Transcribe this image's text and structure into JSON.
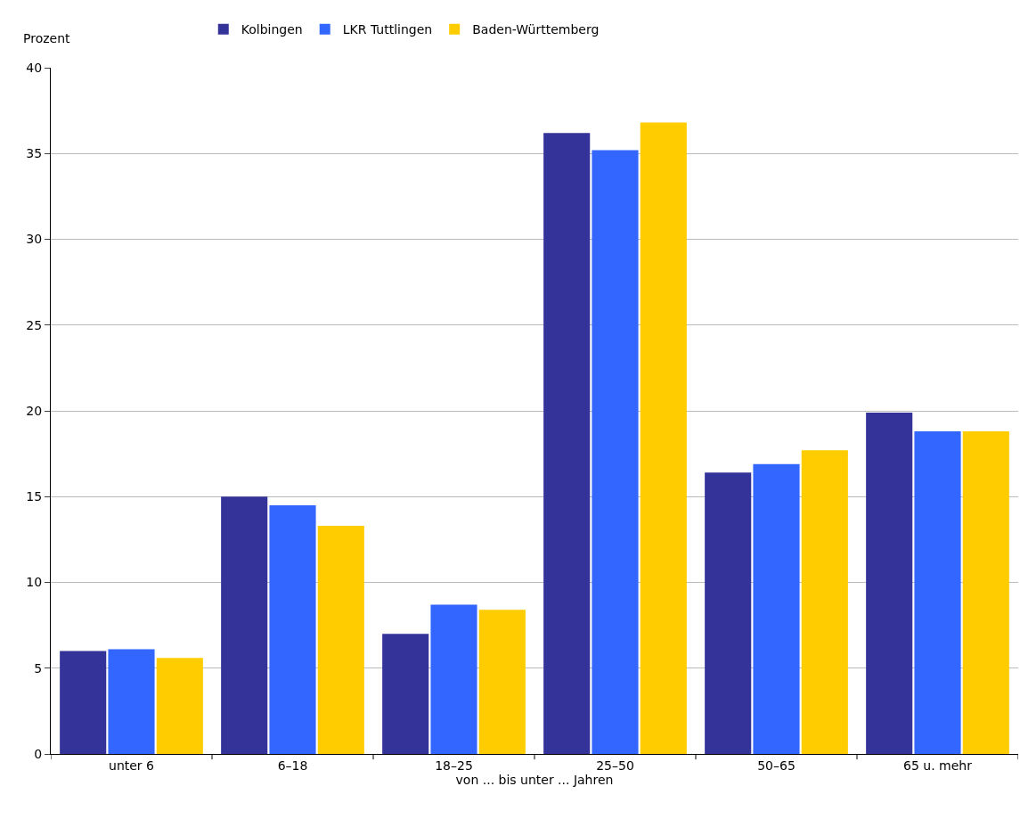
{
  "chart_data": {
    "type": "bar",
    "ylabel": "Prozent",
    "xlabel": "von ... bis unter ... Jahren",
    "categories": [
      "unter 6",
      "6–18",
      "18–25",
      "25–50",
      "50–65",
      "65 u. mehr"
    ],
    "series": [
      {
        "name": "Kolbingen",
        "color": "#333399",
        "values": [
          6.0,
          15.0,
          7.0,
          36.2,
          16.4,
          19.9
        ]
      },
      {
        "name": "LKR Tuttlingen",
        "color": "#3366ff",
        "values": [
          6.1,
          14.5,
          8.7,
          35.2,
          16.9,
          18.8
        ]
      },
      {
        "name": "Baden-Württemberg",
        "color": "#ffcc00",
        "values": [
          5.6,
          13.3,
          8.4,
          36.8,
          17.7,
          18.8
        ]
      }
    ],
    "ylim": [
      0,
      40
    ],
    "yticks": [
      0,
      5,
      10,
      15,
      20,
      25,
      30,
      35,
      40
    ],
    "grid": "y",
    "legend": "top"
  }
}
